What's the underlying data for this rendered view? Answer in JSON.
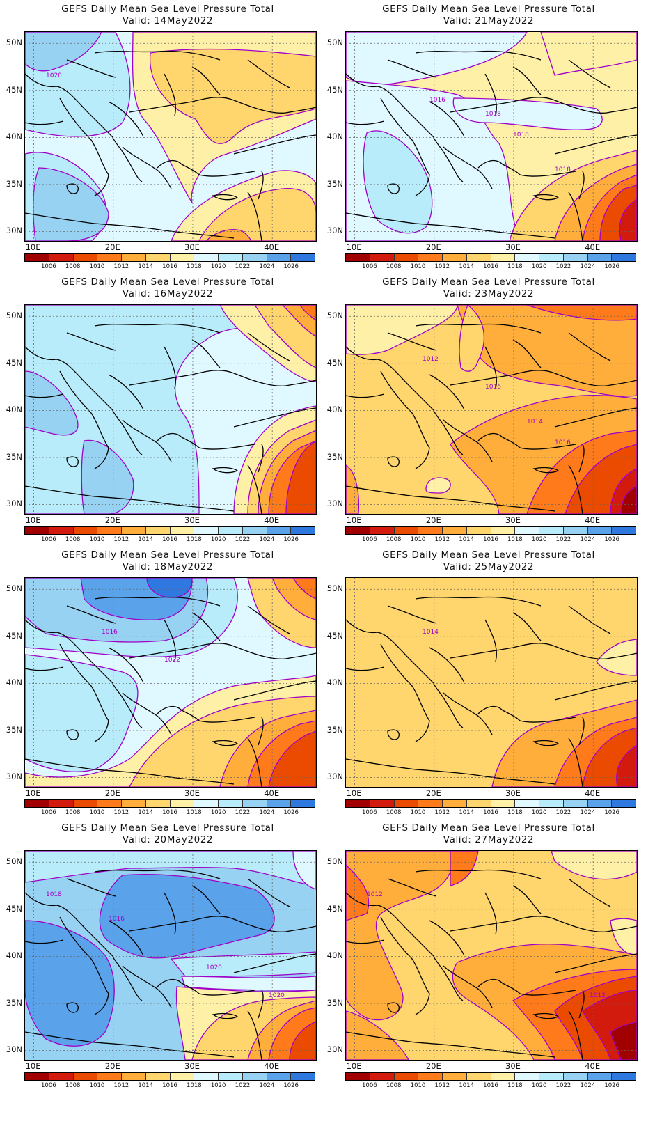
{
  "title_text": "GEFS Daily Mean Sea Level Pressure Total",
  "lat_labels": [
    "50N",
    "45N",
    "40N",
    "35N",
    "30N"
  ],
  "lon_labels": [
    "10E",
    "20E",
    "30E",
    "40E"
  ],
  "colorbar_labels": [
    "1006",
    "1008",
    "1010",
    "1012",
    "1014",
    "1016",
    "1018",
    "1020",
    "1022",
    "1024",
    "1026"
  ],
  "colors": {
    "1005": "#a00000",
    "1006": "#d21a0d",
    "1008": "#eb4b00",
    "1010": "#ff7a1a",
    "1012": "#ffae3c",
    "1014": "#ffd56e",
    "1016": "#fff0a8",
    "1018": "#e0f8ff",
    "1020": "#b8ecfa",
    "1022": "#98d2f3",
    "1024": "#5aa2ea",
    "1026": "#2f78e0",
    "1028": "#1a5fd4",
    "contour": "#a000c8"
  },
  "panels": [
    {
      "valid": "Valid:  14May2022",
      "contour_labels": [
        "1020"
      ]
    },
    {
      "valid": "Valid:  21May2022",
      "contour_labels": [
        "1016",
        "1018",
        "1018",
        "1018"
      ]
    },
    {
      "valid": "Valid:  16May2022",
      "contour_labels": []
    },
    {
      "valid": "Valid:  23May2022",
      "contour_labels": [
        "1016",
        "1016",
        "1012",
        "1014"
      ]
    },
    {
      "valid": "Valid:  18May2022",
      "contour_labels": [
        "1022",
        "1016"
      ]
    },
    {
      "valid": "Valid:  25May2022",
      "contour_labels": [
        "1014"
      ]
    },
    {
      "valid": "Valid:  20May2022",
      "contour_labels": [
        "1020",
        "1020",
        "1018",
        "1016"
      ]
    },
    {
      "valid": "Valid:  27May2022",
      "contour_labels": [
        "1012",
        "1012"
      ]
    }
  ]
}
